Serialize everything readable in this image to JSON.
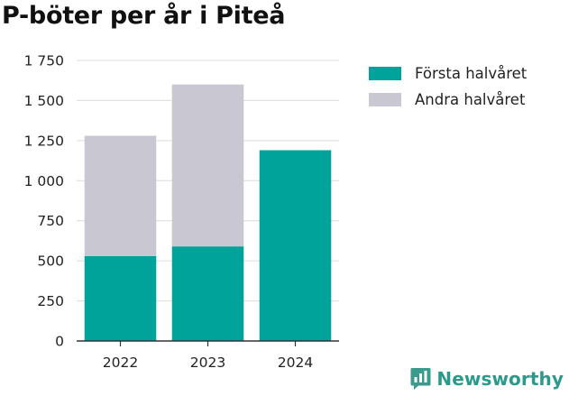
{
  "title": "P-böter per år i Piteå",
  "brand": {
    "name": "Newsworthy",
    "icon": "newsworthy-logo-icon",
    "color": "#3a9a8e"
  },
  "chart_data": {
    "type": "bar",
    "stacked": true,
    "title": "P-böter per år i Piteå",
    "xlabel": "",
    "ylabel": "",
    "categories": [
      "2022",
      "2023",
      "2024"
    ],
    "series": [
      {
        "name": "Första halvåret",
        "color": "#00a39a",
        "values": [
          530,
          590,
          1190
        ]
      },
      {
        "name": "Andra halvåret",
        "color": "#c8c7d2",
        "values": [
          750,
          1010,
          0
        ]
      }
    ],
    "ylim": [
      0,
      1750
    ],
    "yticks": [
      0,
      250,
      500,
      750,
      1000,
      1250,
      1500,
      1750
    ],
    "ytick_labels": [
      "0",
      "250",
      "500",
      "750",
      "1 000",
      "1 250",
      "1 500",
      "1 750"
    ],
    "grid": true,
    "legend_position": "right"
  }
}
